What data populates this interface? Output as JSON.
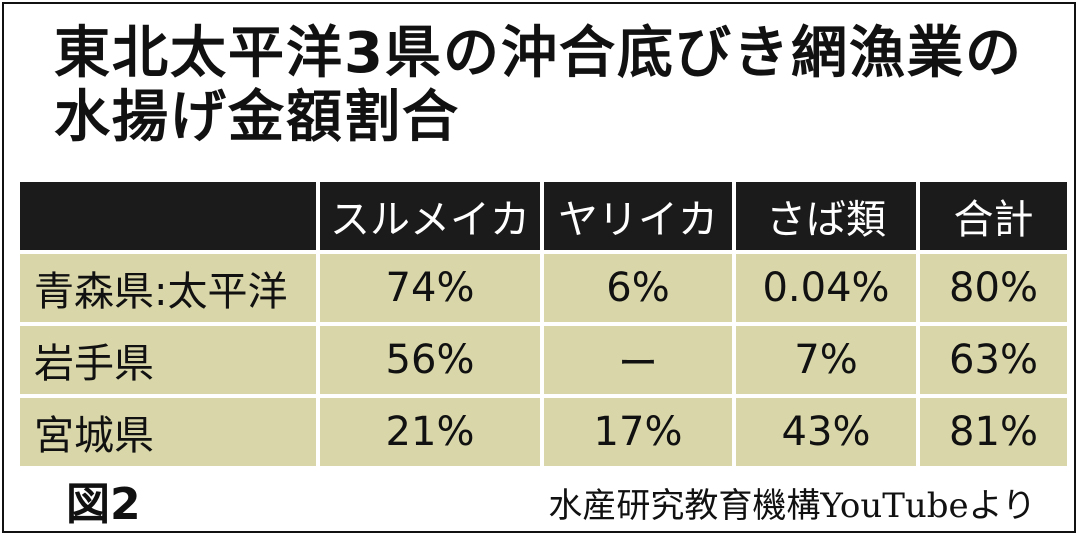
{
  "title": "東北太平洋3県の沖合底びき網漁業の水揚げ金額割合",
  "chart_data": {
    "type": "table",
    "columns": [
      "",
      "スルメイカ",
      "ヤリイカ",
      "さば類",
      "合計"
    ],
    "rows": [
      {
        "label": "青森県:太平洋",
        "cells": [
          "74%",
          "6%",
          "0.04%",
          "80%"
        ]
      },
      {
        "label": "岩手県",
        "cells": [
          "56%",
          "ー",
          "7%",
          "63%"
        ]
      },
      {
        "label": "宮城県",
        "cells": [
          "21%",
          "17%",
          "43%",
          "81%"
        ]
      }
    ]
  },
  "figure_label": "図2",
  "source": "水産研究教育機構YouTubeより",
  "colors": {
    "header_bg": "#1b1b1b",
    "header_text": "#ffffff",
    "body_bg": "#d9d7a9",
    "text": "#111111"
  }
}
